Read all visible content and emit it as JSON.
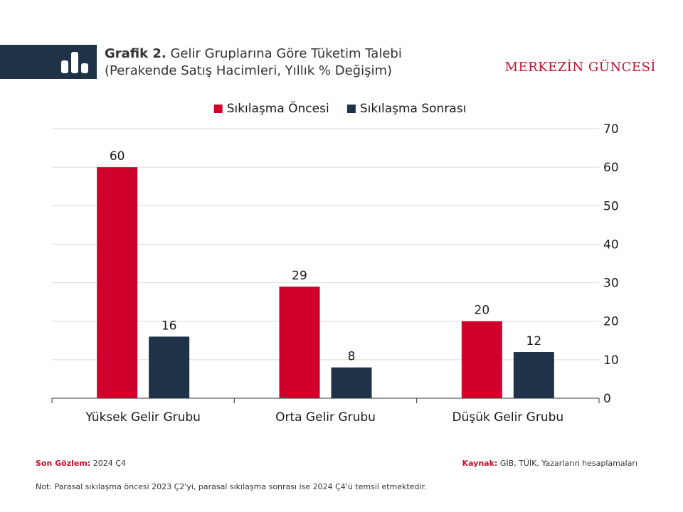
{
  "header": {
    "title_bold": "Grafik 2.",
    "title_rest": "Gelir Gruplarına Göre Tüketim Talebi",
    "subtitle": "(Perakende Satış Hacimleri, Yıllık % Değişim)",
    "brand": "MERKEZİN GÜNCESİ",
    "icon": "bar-chart-icon"
  },
  "chart_data": {
    "type": "bar",
    "categories": [
      "Yüksek Gelir Grubu",
      "Orta Gelir Grubu",
      "Düşük Gelir Grubu"
    ],
    "series": [
      {
        "name": "Sıkılaşma Öncesi",
        "values": [
          60,
          29,
          20
        ],
        "color": "#d0002c"
      },
      {
        "name": "Sıkılaşma Sonrası",
        "values": [
          16,
          8,
          12
        ],
        "color": "#1f3248"
      }
    ],
    "ylim": [
      0,
      70
    ],
    "yticks": [
      0,
      10,
      20,
      30,
      40,
      50,
      60,
      70
    ],
    "grid": true,
    "legend": "top-center",
    "y_axis_side": "right"
  },
  "footer": {
    "last_obs_label": "Son Gözlem:",
    "last_obs_value": "2024 Ç4",
    "source_label": "Kaynak:",
    "source_value": "GİB, TÜİK, Yazarların hesaplamaları",
    "note": "Not: Parasal sıkılaşma öncesi 2023 Ç2'yi, parasal sıkılaşma sonrası ise 2024 Ç4'ü temsil etmektedir."
  }
}
